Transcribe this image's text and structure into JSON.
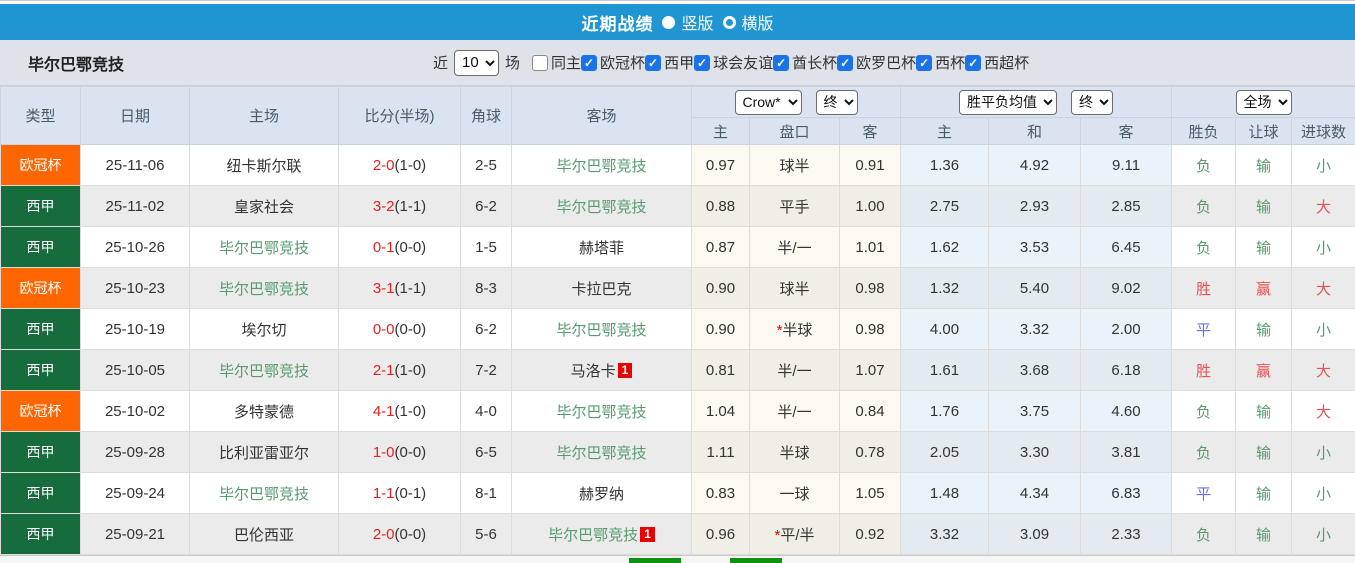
{
  "topbar": {
    "title": "近期战绩",
    "radios": [
      {
        "label": "竖版",
        "selected": true
      },
      {
        "label": "横版",
        "selected": false
      }
    ]
  },
  "filterbar": {
    "team": "毕尔巴鄂竞技",
    "near_label": "近",
    "count": "10",
    "matches_label": "场",
    "same_home": {
      "label": "同主",
      "checked": false
    },
    "leagues": [
      {
        "label": "欧冠杯",
        "checked": true
      },
      {
        "label": "西甲",
        "checked": true
      },
      {
        "label": "球会友谊",
        "checked": true
      },
      {
        "label": "酋长杯",
        "checked": true
      },
      {
        "label": "欧罗巴杯",
        "checked": true
      },
      {
        "label": "西杯",
        "checked": true
      },
      {
        "label": "西超杯",
        "checked": true
      }
    ]
  },
  "table": {
    "headers": [
      "类型",
      "日期",
      "主场",
      "比分(半场)",
      "角球",
      "客场"
    ],
    "selects": {
      "bookmaker": "Crow*",
      "bookmaker_period": "终",
      "europe": "胜平负均值",
      "europe_period": "终",
      "scope": "全场"
    },
    "subheaders": [
      "主",
      "盘口",
      "客",
      "主",
      "和",
      "客",
      "胜负",
      "让球",
      "进球数"
    ],
    "rows": [
      {
        "type": "欧冠杯",
        "league": "ucl",
        "date": "25-11-06",
        "home": "纽卡斯尔联",
        "home_focus": false,
        "home_red_card": false,
        "score_ft": "2-0",
        "score_ht": "(1-0)",
        "corners": "2-5",
        "away": "毕尔巴鄂竞技",
        "away_focus": true,
        "away_red_card": false,
        "odds_home": "0.97",
        "handicap": "球半",
        "handicap_star": false,
        "odds_away": "0.91",
        "euro_home": "1.36",
        "euro_draw": "4.92",
        "euro_away": "9.11",
        "result": "负",
        "result_color": "green",
        "handicap_result": "输",
        "handicap_result_color": "green",
        "goals_result": "小",
        "goals_result_color": "green"
      },
      {
        "type": "西甲",
        "league": "liga",
        "date": "25-11-02",
        "home": "皇家社会",
        "home_focus": false,
        "home_red_card": false,
        "score_ft": "3-2",
        "score_ht": "(1-1)",
        "corners": "6-2",
        "away": "毕尔巴鄂竞技",
        "away_focus": true,
        "away_red_card": false,
        "odds_home": "0.88",
        "handicap": "平手",
        "handicap_star": false,
        "odds_away": "1.00",
        "euro_home": "2.75",
        "euro_draw": "2.93",
        "euro_away": "2.85",
        "result": "负",
        "result_color": "green",
        "handicap_result": "输",
        "handicap_result_color": "green",
        "goals_result": "大",
        "goals_result_color": "red"
      },
      {
        "type": "西甲",
        "league": "liga",
        "date": "25-10-26",
        "home": "毕尔巴鄂竞技",
        "home_focus": true,
        "home_red_card": false,
        "score_ft": "0-1",
        "score_ht": "(0-0)",
        "corners": "1-5",
        "away": "赫塔菲",
        "away_focus": false,
        "away_red_card": false,
        "odds_home": "0.87",
        "handicap": "半/一",
        "handicap_star": false,
        "odds_away": "1.01",
        "euro_home": "1.62",
        "euro_draw": "3.53",
        "euro_away": "6.45",
        "result": "负",
        "result_color": "green",
        "handicap_result": "输",
        "handicap_result_color": "green",
        "goals_result": "小",
        "goals_result_color": "green"
      },
      {
        "type": "欧冠杯",
        "league": "ucl",
        "date": "25-10-23",
        "home": "毕尔巴鄂竞技",
        "home_focus": true,
        "home_red_card": false,
        "score_ft": "3-1",
        "score_ht": "(1-1)",
        "corners": "8-3",
        "away": "卡拉巴克",
        "away_focus": false,
        "away_red_card": false,
        "odds_home": "0.90",
        "handicap": "球半",
        "handicap_star": false,
        "odds_away": "0.98",
        "euro_home": "1.32",
        "euro_draw": "5.40",
        "euro_away": "9.02",
        "result": "胜",
        "result_color": "red",
        "handicap_result": "赢",
        "handicap_result_color": "red",
        "goals_result": "大",
        "goals_result_color": "red"
      },
      {
        "type": "西甲",
        "league": "liga",
        "date": "25-10-19",
        "home": "埃尔切",
        "home_focus": false,
        "home_red_card": false,
        "score_ft": "0-0",
        "score_ht": "(0-0)",
        "corners": "6-2",
        "away": "毕尔巴鄂竞技",
        "away_focus": true,
        "away_red_card": false,
        "odds_home": "0.90",
        "handicap": "半球",
        "handicap_star": true,
        "odds_away": "0.98",
        "euro_home": "4.00",
        "euro_draw": "3.32",
        "euro_away": "2.00",
        "result": "平",
        "result_color": "blue",
        "handicap_result": "输",
        "handicap_result_color": "green",
        "goals_result": "小",
        "goals_result_color": "green"
      },
      {
        "type": "西甲",
        "league": "liga",
        "date": "25-10-05",
        "home": "毕尔巴鄂竞技",
        "home_focus": true,
        "home_red_card": false,
        "score_ft": "2-1",
        "score_ht": "(1-0)",
        "corners": "7-2",
        "away": "马洛卡",
        "away_focus": false,
        "away_red_card": true,
        "odds_home": "0.81",
        "handicap": "半/一",
        "handicap_star": false,
        "odds_away": "1.07",
        "euro_home": "1.61",
        "euro_draw": "3.68",
        "euro_away": "6.18",
        "result": "胜",
        "result_color": "red",
        "handicap_result": "赢",
        "handicap_result_color": "red",
        "goals_result": "大",
        "goals_result_color": "red"
      },
      {
        "type": "欧冠杯",
        "league": "ucl",
        "date": "25-10-02",
        "home": "多特蒙德",
        "home_focus": false,
        "home_red_card": false,
        "score_ft": "4-1",
        "score_ht": "(1-0)",
        "corners": "4-0",
        "away": "毕尔巴鄂竞技",
        "away_focus": true,
        "away_red_card": false,
        "odds_home": "1.04",
        "handicap": "半/一",
        "handicap_star": false,
        "odds_away": "0.84",
        "euro_home": "1.76",
        "euro_draw": "3.75",
        "euro_away": "4.60",
        "result": "负",
        "result_color": "green",
        "handicap_result": "输",
        "handicap_result_color": "green",
        "goals_result": "大",
        "goals_result_color": "red"
      },
      {
        "type": "西甲",
        "league": "liga",
        "date": "25-09-28",
        "home": "比利亚雷亚尔",
        "home_focus": false,
        "home_red_card": false,
        "score_ft": "1-0",
        "score_ht": "(0-0)",
        "corners": "6-5",
        "away": "毕尔巴鄂竞技",
        "away_focus": true,
        "away_red_card": false,
        "odds_home": "1.11",
        "handicap": "半球",
        "handicap_star": false,
        "odds_away": "0.78",
        "euro_home": "2.05",
        "euro_draw": "3.30",
        "euro_away": "3.81",
        "result": "负",
        "result_color": "green",
        "handicap_result": "输",
        "handicap_result_color": "green",
        "goals_result": "小",
        "goals_result_color": "green"
      },
      {
        "type": "西甲",
        "league": "liga",
        "date": "25-09-24",
        "home": "毕尔巴鄂竞技",
        "home_focus": true,
        "home_red_card": false,
        "score_ft": "1-1",
        "score_ht": "(0-1)",
        "corners": "8-1",
        "away": "赫罗纳",
        "away_focus": false,
        "away_red_card": false,
        "odds_home": "0.83",
        "handicap": "一球",
        "handicap_star": false,
        "odds_away": "1.05",
        "euro_home": "1.48",
        "euro_draw": "4.34",
        "euro_away": "6.83",
        "result": "平",
        "result_color": "blue",
        "handicap_result": "输",
        "handicap_result_color": "green",
        "goals_result": "小",
        "goals_result_color": "green"
      },
      {
        "type": "西甲",
        "league": "liga",
        "date": "25-09-21",
        "home": "巴伦西亚",
        "home_focus": false,
        "home_red_card": false,
        "score_ft": "2-0",
        "score_ht": "(0-0)",
        "corners": "5-6",
        "away": "毕尔巴鄂竞技",
        "away_focus": true,
        "away_red_card": true,
        "odds_home": "0.96",
        "handicap": "平/半",
        "handicap_star": true,
        "odds_away": "0.92",
        "euro_home": "3.32",
        "euro_draw": "3.09",
        "euro_away": "2.33",
        "result": "负",
        "result_color": "green",
        "handicap_result": "输",
        "handicap_result_color": "green",
        "goals_result": "小",
        "goals_result_color": "green"
      }
    ]
  },
  "colors": {
    "topbar_blue": "#1f96d2",
    "ucl_orange": "#ff6600",
    "laliga_green": "#166c3d",
    "focus_team_green": "#569b6d",
    "win_red": "#e85252",
    "draw_blue": "#6a6aff",
    "loss_green": "#569b6d",
    "score_red": "#e81f1f",
    "red_card_badge": "#e60000",
    "checkbox_blue": "#1a73e8"
  }
}
